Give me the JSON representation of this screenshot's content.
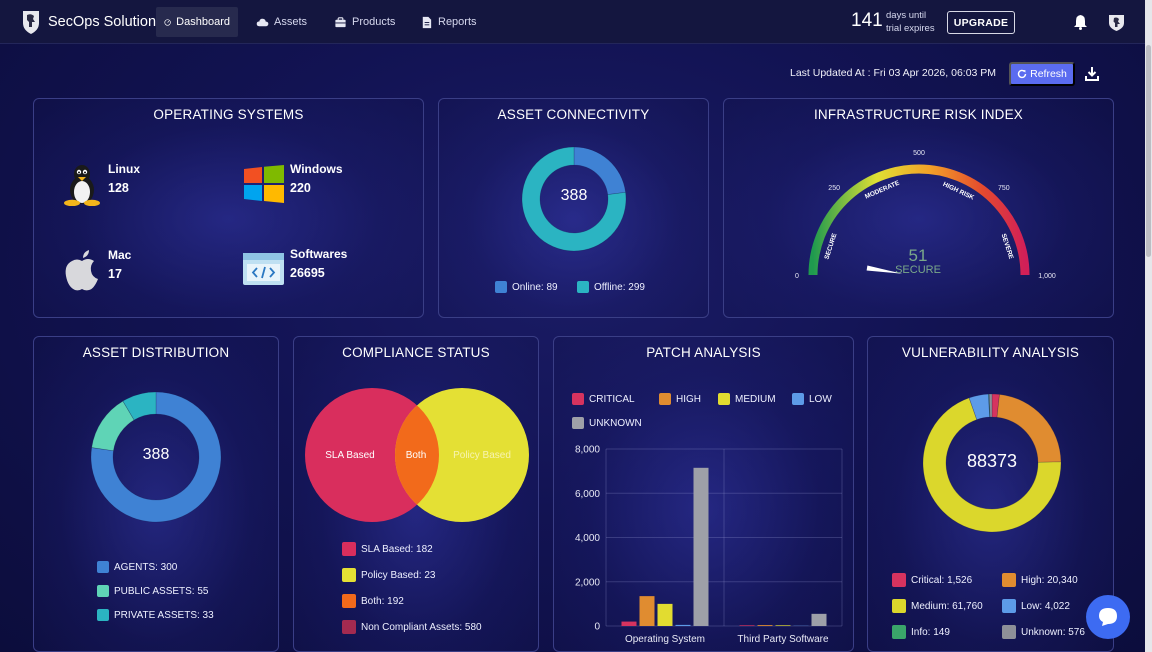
{
  "nav": {
    "brand": "SecOps Solution",
    "items": [
      {
        "label": "Dashboard",
        "active": true
      },
      {
        "label": "Assets"
      },
      {
        "label": "Products"
      },
      {
        "label": "Reports"
      }
    ],
    "days_count": "141",
    "days_line1": "days until",
    "days_line2": "trial expires",
    "upgrade_label": "UPGRADE"
  },
  "toolbar": {
    "last_updated": "Last Updated At : Fri 03 Apr 2026, 06:03 PM",
    "refresh_label": "Refresh"
  },
  "os_card": {
    "title": "OPERATING SYSTEMS",
    "items": [
      {
        "name": "Linux",
        "value": "128"
      },
      {
        "name": "Windows",
        "value": "220"
      },
      {
        "name": "Mac",
        "value": "17"
      },
      {
        "name": "Softwares",
        "value": "26695"
      }
    ]
  },
  "connectivity": {
    "title": "ASSET CONNECTIVITY",
    "total": "388",
    "online": 89,
    "offline": 299,
    "online_label": "Online: 89",
    "offline_label": "Offline: 299",
    "colors": {
      "online": "#3f82d4",
      "offline": "#2bb4c2"
    }
  },
  "risk": {
    "title": "INFRASTRUCTURE RISK INDEX",
    "value": 51,
    "value_text": "51",
    "status": "SECURE",
    "max": 1000,
    "ticks": [
      "0",
      "250",
      "500",
      "750",
      "1,000"
    ],
    "zones": [
      "SECURE",
      "MODERATE",
      "HIGH RISK",
      "SEVERE"
    ]
  },
  "asset_dist": {
    "title": "ASSET DISTRIBUTION",
    "total": "388",
    "segments": [
      {
        "label": "AGENTS: 300",
        "value": 300,
        "color": "#3f82d4"
      },
      {
        "label": "PUBLIC ASSETS: 55",
        "value": 55,
        "color": "#5fd4b6"
      },
      {
        "label": "PRIVATE ASSETS: 33",
        "value": 33,
        "color": "#2bb4c2"
      }
    ]
  },
  "compliance": {
    "title": "COMPLIANCE STATUS",
    "venn_left": "SLA Based",
    "venn_mid": "Both",
    "venn_right": "Policy Based",
    "legend": [
      {
        "label": "SLA Based: 182",
        "color": "#d92e5d"
      },
      {
        "label": "Policy Based: 23",
        "color": "#e4e034"
      },
      {
        "label": "Both: 192",
        "color": "#f26a1b"
      },
      {
        "label": "Non Compliant Assets: 580",
        "color": "#a32a50"
      }
    ]
  },
  "patch": {
    "title": "PATCH ANALYSIS",
    "legend": [
      {
        "label": "CRITICAL",
        "color": "#d6335f"
      },
      {
        "label": "HIGH",
        "color": "#e08c30"
      },
      {
        "label": "MEDIUM",
        "color": "#e2dc30"
      },
      {
        "label": "LOW",
        "color": "#5d9be8"
      },
      {
        "label": "UNKNOWN",
        "color": "#9ea0a8"
      }
    ]
  },
  "vuln": {
    "title": "VULNERABILITY ANALYSIS",
    "total": "88373",
    "legend": [
      {
        "label": "Critical: 1,526",
        "value": 1526,
        "color": "#d6335f"
      },
      {
        "label": "High: 20,340",
        "value": 20340,
        "color": "#e08c30"
      },
      {
        "label": "Medium: 61,760",
        "value": 61760,
        "color": "#dbd72c"
      },
      {
        "label": "Low: 4,022",
        "value": 4022,
        "color": "#5d9be8"
      },
      {
        "label": "Info: 149",
        "value": 149,
        "color": "#3aa56a"
      },
      {
        "label": "Unknown: 576",
        "value": 576,
        "color": "#8e9098"
      }
    ]
  },
  "chart_data": {
    "type": "bar",
    "title": "PATCH ANALYSIS",
    "categories": [
      "Operating System",
      "Third Party Software"
    ],
    "series": [
      {
        "name": "CRITICAL",
        "color": "#d6335f",
        "values": [
          200,
          30
        ]
      },
      {
        "name": "HIGH",
        "color": "#e08c30",
        "values": [
          1350,
          40
        ]
      },
      {
        "name": "MEDIUM",
        "color": "#e2dc30",
        "values": [
          1000,
          30
        ]
      },
      {
        "name": "LOW",
        "color": "#5d9be8",
        "values": [
          50,
          10
        ]
      },
      {
        "name": "UNKNOWN",
        "color": "#9ea0a8",
        "values": [
          7150,
          550
        ]
      }
    ],
    "ylim": [
      0,
      8000
    ],
    "yticks": [
      "0",
      "2,000",
      "4,000",
      "6,000",
      "8,000"
    ],
    "ytick_values": [
      0,
      2000,
      4000,
      6000,
      8000
    ],
    "xlabel": "",
    "ylabel": ""
  }
}
